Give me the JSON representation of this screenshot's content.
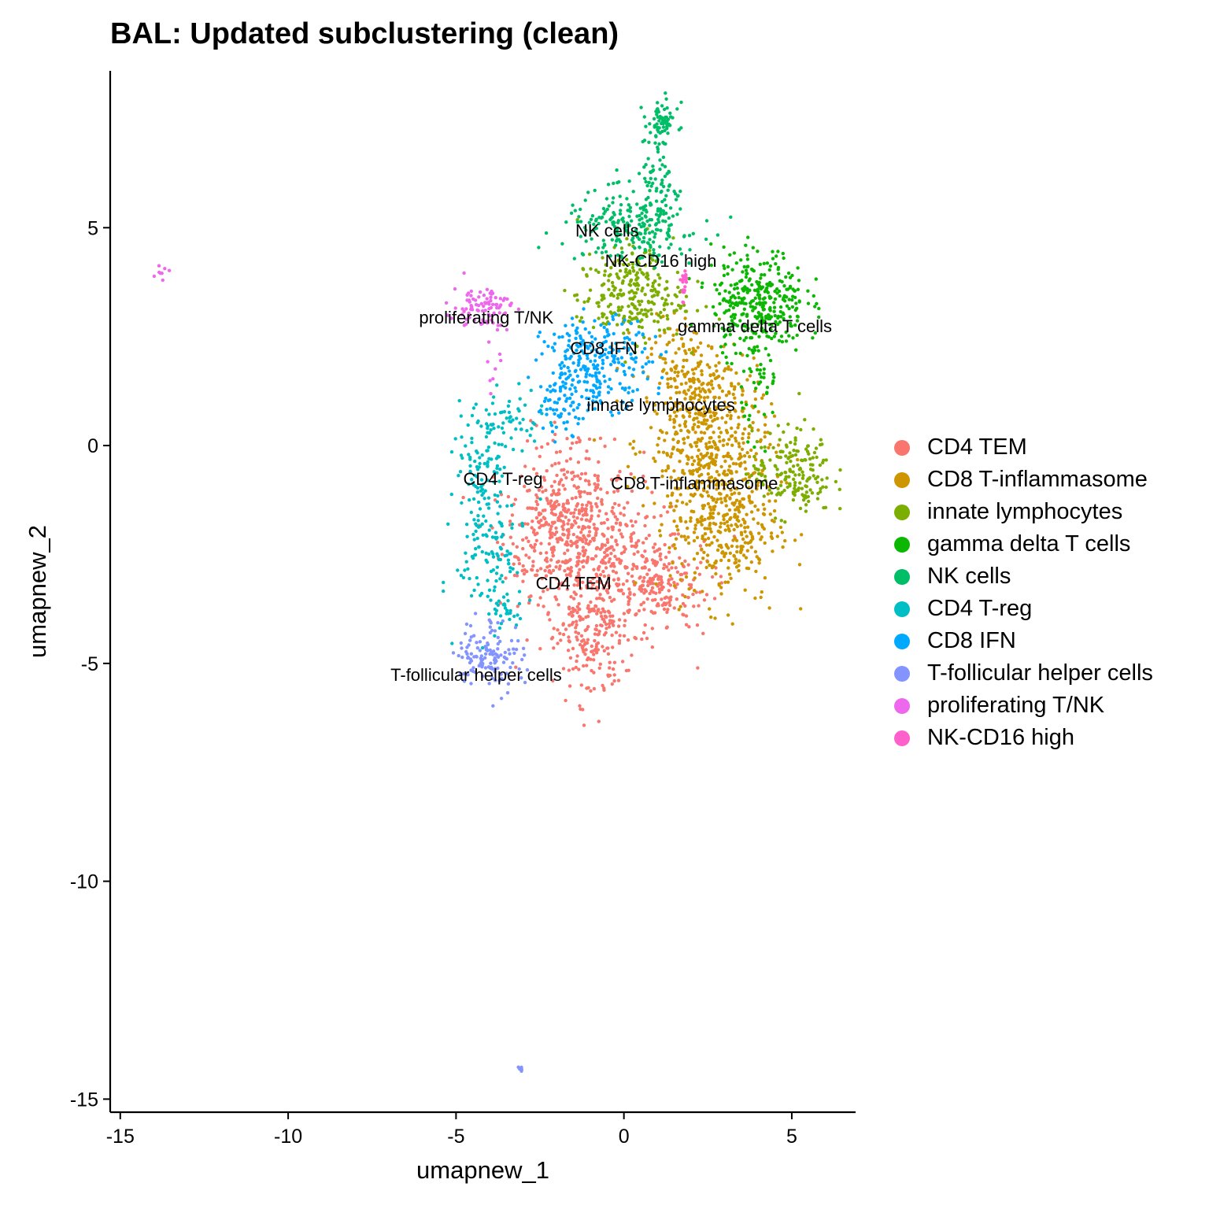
{
  "title": "BAL: Updated subclustering (clean)",
  "chart_data": {
    "type": "scatter",
    "title": "BAL: Updated subclustering (clean)",
    "xlabel": "umapnew_1",
    "ylabel": "umapnew_2",
    "xlim": [
      -15.3,
      6.9
    ],
    "ylim": [
      -15.3,
      8.6
    ],
    "xticks": [
      -15,
      -10,
      -5,
      0,
      5
    ],
    "yticks": [
      -15,
      -10,
      -5,
      0,
      5
    ],
    "grid": false,
    "legend_position": "right",
    "clusters": [
      {
        "name": "CD4 TEM",
        "color": "#F8766D",
        "label": "CD4 TEM",
        "label_pos": [
          -1.5,
          -3.3
        ],
        "blobs": [
          {
            "cx": -2.0,
            "cy": -2.0,
            "sx": 0.8,
            "sy": 0.7,
            "n": 260
          },
          {
            "cx": -0.5,
            "cy": -2.8,
            "sx": 1.2,
            "sy": 0.9,
            "n": 380
          },
          {
            "cx": 1.0,
            "cy": -3.2,
            "sx": 0.8,
            "sy": 0.5,
            "n": 150
          },
          {
            "cx": -1.0,
            "cy": -4.5,
            "sx": 0.5,
            "sy": 0.7,
            "n": 160
          },
          {
            "cx": -1.5,
            "cy": -1.0,
            "sx": 0.8,
            "sy": 0.7,
            "n": 120
          }
        ]
      },
      {
        "name": "CD8 T-inflammasome",
        "color": "#CD9600",
        "label": "CD8 T-inflammasome",
        "label_pos": [
          2.1,
          -1.0
        ],
        "blobs": [
          {
            "cx": 2.5,
            "cy": 0.0,
            "sx": 0.9,
            "sy": 0.8,
            "n": 380
          },
          {
            "cx": 3.0,
            "cy": -1.8,
            "sx": 0.8,
            "sy": 0.9,
            "n": 360
          },
          {
            "cx": 2.2,
            "cy": 1.5,
            "sx": 0.7,
            "sy": 0.5,
            "n": 140
          },
          {
            "cx": 1.2,
            "cy": 2.3,
            "sx": 0.5,
            "sy": 0.4,
            "n": 40
          }
        ]
      },
      {
        "name": "innate lymphocytes",
        "color": "#7CAE00",
        "label": "innate lymphocytes",
        "label_pos": [
          1.1,
          0.8
        ],
        "blobs": [
          {
            "cx": 0.2,
            "cy": 3.4,
            "sx": 0.8,
            "sy": 0.5,
            "n": 240
          },
          {
            "cx": 5.0,
            "cy": -0.6,
            "sx": 0.6,
            "sy": 0.5,
            "n": 180
          },
          {
            "cx": 0.5,
            "cy": 4.3,
            "sx": 0.3,
            "sy": 0.3,
            "n": 25
          }
        ]
      },
      {
        "name": "gamma delta T cells",
        "color": "#0CB702",
        "label": "gamma delta T cells",
        "label_pos": [
          3.9,
          2.6
        ],
        "blobs": [
          {
            "cx": 4.0,
            "cy": 3.3,
            "sx": 0.7,
            "sy": 0.6,
            "n": 340
          },
          {
            "cx": 4.1,
            "cy": 1.5,
            "sx": 0.3,
            "sy": 0.6,
            "n": 40
          }
        ]
      },
      {
        "name": "NK cells",
        "color": "#00BE67",
        "label": "NK cells",
        "label_pos": [
          -0.5,
          4.8
        ],
        "blobs": [
          {
            "cx": 0.2,
            "cy": 5.0,
            "sx": 1.0,
            "sy": 0.4,
            "n": 220
          },
          {
            "cx": 1.0,
            "cy": 6.2,
            "sx": 0.3,
            "sy": 0.8,
            "n": 100
          },
          {
            "cx": 1.1,
            "cy": 7.4,
            "sx": 0.2,
            "sy": 0.2,
            "n": 50
          }
        ]
      },
      {
        "name": "CD4 T-reg",
        "color": "#00BFC4",
        "label": "CD4 T-reg",
        "label_pos": [
          -3.6,
          -0.9
        ],
        "blobs": [
          {
            "cx": -4.2,
            "cy": -0.5,
            "sx": 0.4,
            "sy": 0.8,
            "n": 110
          },
          {
            "cx": -4.0,
            "cy": -2.4,
            "sx": 0.5,
            "sy": 0.8,
            "n": 110
          },
          {
            "cx": -3.2,
            "cy": 0.6,
            "sx": 0.4,
            "sy": 0.3,
            "n": 40
          },
          {
            "cx": -3.6,
            "cy": -3.8,
            "sx": 0.3,
            "sy": 0.3,
            "n": 30
          }
        ]
      },
      {
        "name": "CD8 IFN",
        "color": "#00A9FF",
        "label": "CD8 IFN",
        "label_pos": [
          -0.6,
          2.1
        ],
        "blobs": [
          {
            "cx": -0.8,
            "cy": 1.9,
            "sx": 0.8,
            "sy": 0.5,
            "n": 260
          },
          {
            "cx": -1.8,
            "cy": 0.9,
            "sx": 0.4,
            "sy": 0.3,
            "n": 60
          }
        ]
      },
      {
        "name": "T-follicular helper cells",
        "color": "#8494FF",
        "label": "T-follicular helper cells",
        "label_pos": [
          -4.4,
          -5.4
        ],
        "blobs": [
          {
            "cx": -4.0,
            "cy": -4.8,
            "sx": 0.5,
            "sy": 0.4,
            "n": 130
          },
          {
            "cx": -3.1,
            "cy": -14.3,
            "sx": 0.04,
            "sy": 0.03,
            "n": 6
          }
        ]
      },
      {
        "name": "proliferating T/NK",
        "color": "#ED68ED",
        "label": "proliferating T/NK",
        "label_pos": [
          -4.1,
          2.8
        ],
        "blobs": [
          {
            "cx": -4.2,
            "cy": 3.2,
            "sx": 0.45,
            "sy": 0.25,
            "n": 90
          },
          {
            "cx": -13.8,
            "cy": 3.9,
            "sx": 0.15,
            "sy": 0.15,
            "n": 8
          },
          {
            "cx": -4.0,
            "cy": 1.8,
            "sx": 0.15,
            "sy": 0.4,
            "n": 8
          }
        ]
      },
      {
        "name": "NK-CD16 high",
        "color": "#FF61CC",
        "label": "NK-CD16 high",
        "label_pos": [
          1.1,
          4.1
        ],
        "blobs": [
          {
            "cx": 1.8,
            "cy": 3.7,
            "sx": 0.06,
            "sy": 0.2,
            "n": 20
          }
        ]
      }
    ]
  }
}
